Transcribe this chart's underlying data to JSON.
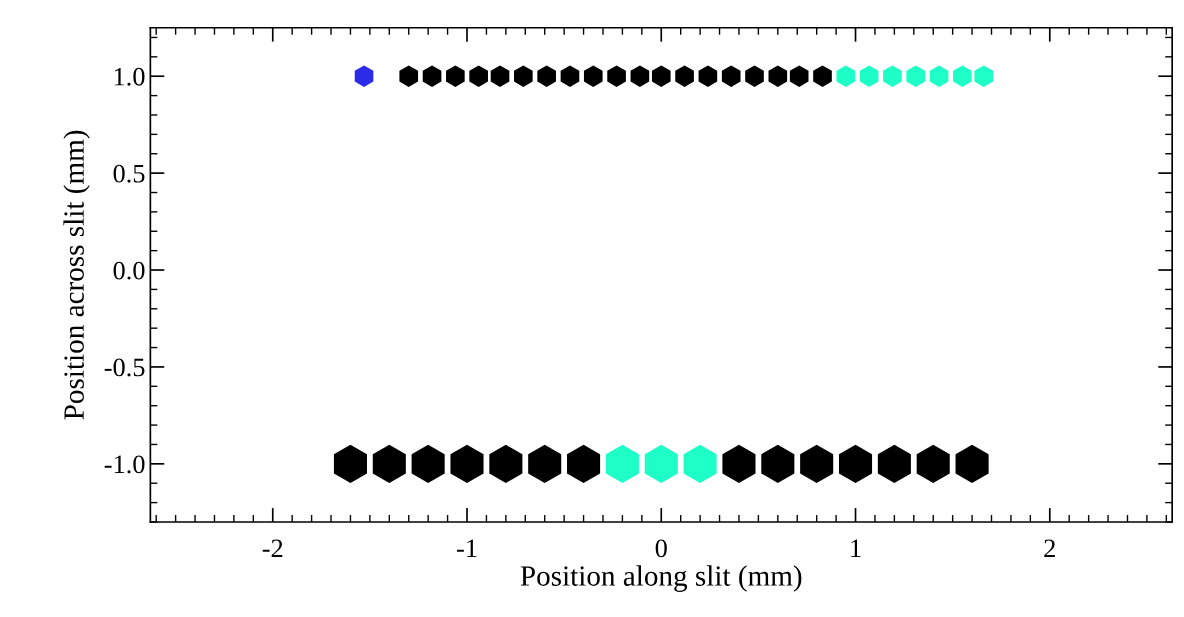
{
  "chart_data": {
    "type": "scatter",
    "xlabel": "Position along slit (mm)",
    "ylabel": "Position across slit (mm)",
    "grid": false,
    "xlim": [
      -2.63,
      2.63
    ],
    "ylim": [
      -1.3,
      1.25
    ],
    "xticks": [
      {
        "value": -2,
        "label": "-2"
      },
      {
        "value": -1,
        "label": "-1"
      },
      0,
      1,
      2
    ],
    "yticks": [
      {
        "value": -1.0,
        "label": "-1.0"
      },
      {
        "value": -0.5,
        "label": "-0.5"
      },
      {
        "value": 0.0,
        "label": "0.0"
      },
      {
        "value": 0.5,
        "label": "0.5"
      },
      {
        "value": 1.0,
        "label": "1.0"
      }
    ],
    "series": [
      {
        "color": "#2b2be8",
        "x": [
          -1.53
        ],
        "values": [
          1.0
        ]
      },
      {
        "color": "#000000",
        "x": [
          -1.3,
          -1.18,
          -1.06,
          -0.94,
          -0.83,
          -0.71,
          -0.59,
          -0.47,
          -0.35,
          -0.23,
          -0.11,
          0.0,
          0.12,
          0.24,
          0.36,
          0.48,
          0.6,
          0.71,
          0.83
        ],
        "values": [
          1.0,
          1.0,
          1.0,
          1.0,
          1.0,
          1.0,
          1.0,
          1.0,
          1.0,
          1.0,
          1.0,
          1.0,
          1.0,
          1.0,
          1.0,
          1.0,
          1.0,
          1.0,
          1.0
        ]
      },
      {
        "color": "#1effc8",
        "x": [
          0.95,
          1.07,
          1.19,
          1.31,
          1.43,
          1.55,
          1.66
        ],
        "values": [
          1.0,
          1.0,
          1.0,
          1.0,
          1.0,
          1.0,
          1.0
        ]
      },
      {
        "color": "#000000",
        "x": [
          -1.6,
          -1.4,
          -1.2,
          -1.0,
          -0.8,
          -0.6,
          -0.4,
          0.4,
          0.6,
          0.8,
          1.0,
          1.2,
          1.4,
          1.6
        ],
        "values": [
          -1.0,
          -1.0,
          -1.0,
          -1.0,
          -1.0,
          -1.0,
          -1.0,
          -1.0,
          -1.0,
          -1.0,
          -1.0,
          -1.0,
          -1.0,
          -1.0
        ]
      },
      {
        "color": "#1effc8",
        "x": [
          -0.2,
          0.0,
          0.2
        ],
        "values": [
          -1.0,
          -1.0,
          -1.0
        ]
      }
    ]
  }
}
